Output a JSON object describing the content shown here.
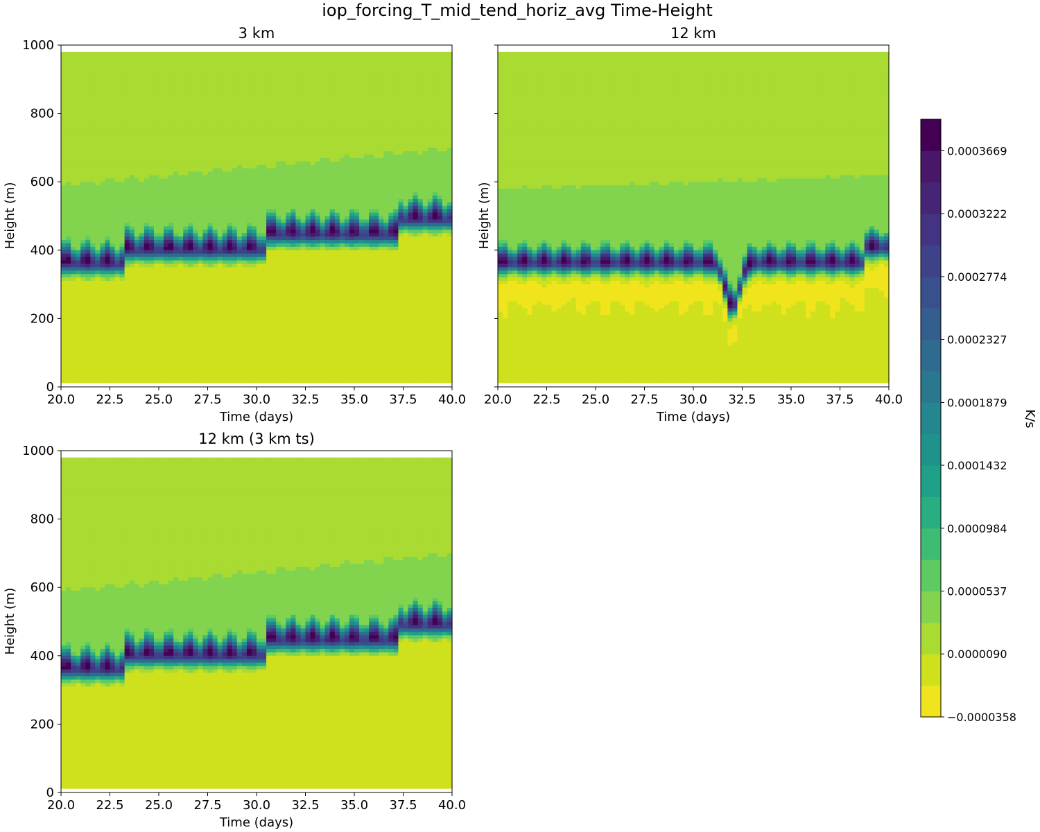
{
  "chart_data": {
    "type": "heatmap",
    "title": "iop_forcing_T_mid_tend_horiz_avg Time-Height",
    "colorbar": {
      "label": "K/s",
      "levels": [
        -3.58e-05,
        -1.34e-05,
        9e-06,
        3.13e-05,
        5.37e-05,
        7.61e-05,
        9.84e-05,
        0.0001208,
        0.0001432,
        0.0001656,
        0.0001879,
        0.0002103,
        0.0002327,
        0.0002551,
        0.0002774,
        0.0002998,
        0.0003222,
        0.0003446,
        0.0003669,
        0.0003893
      ],
      "tick_labels": [
        "−0.0000358",
        "0.0000090",
        "0.0000537",
        "0.0000984",
        "0.0001432",
        "0.0001879",
        "0.0002327",
        "0.0002774",
        "0.0003222",
        "0.0003669"
      ],
      "tick_values": [
        -3.58e-05,
        9e-06,
        5.37e-05,
        9.84e-05,
        0.0001432,
        0.0001879,
        0.0002327,
        0.0002774,
        0.0003222,
        0.0003669
      ],
      "colors": [
        "#f0e51d",
        "#cfe11c",
        "#a9db33",
        "#82d34e",
        "#5fca61",
        "#3ebc73",
        "#28ae80",
        "#1fa088",
        "#1f938b",
        "#24868e",
        "#29788e",
        "#2e6b8e",
        "#335e8d",
        "#38508b",
        "#3e4289",
        "#433382",
        "#472576",
        "#481769",
        "#440154"
      ]
    },
    "panels": [
      {
        "title": "3 km",
        "xlabel": "Time (days)",
        "ylabel": "Height (m)",
        "xlim": [
          20.0,
          40.0
        ],
        "ylim": [
          0,
          1000
        ],
        "xticks": [
          "20.0",
          "22.5",
          "25.0",
          "27.5",
          "30.0",
          "32.5",
          "35.0",
          "37.5",
          "40.0"
        ],
        "yticks": [
          "0",
          "200",
          "400",
          "600",
          "800",
          "1000"
        ],
        "show_ytick_labels": true,
        "data_top": 980,
        "data_bottom": 12,
        "peak_start": 365,
        "peak_end": 500,
        "steps": [
          [
            23.3,
            40
          ],
          [
            30.4,
            45
          ],
          [
            37.2,
            45
          ]
        ],
        "band_width": 42,
        "plateau_start": 590,
        "plateau_end": 700,
        "oscillation": 12,
        "dip": null
      },
      {
        "title": "12 km",
        "xlabel": "Time (days)",
        "ylabel": "Height (m)",
        "xlim": [
          20.0,
          40.0
        ],
        "ylim": [
          0,
          1000
        ],
        "xticks": [
          "20.0",
          "22.5",
          "25.0",
          "27.5",
          "30.0",
          "32.5",
          "35.0",
          "37.5",
          "40.0"
        ],
        "yticks": [
          "0",
          "200",
          "400",
          "600",
          "800",
          "1000"
        ],
        "show_ytick_labels": false,
        "data_top": 980,
        "data_bottom": 12,
        "peak_start": 365,
        "peak_end": 420,
        "steps": [
          [
            38.8,
            45
          ]
        ],
        "band_width": 38,
        "plateau_start": 580,
        "plateau_end": 620,
        "oscillation": 6,
        "dip": {
          "center": 32.0,
          "depth": 130,
          "width": 0.5
        },
        "under_band": true
      },
      {
        "title": "12 km (3 km ts)",
        "xlabel": "Time (days)",
        "ylabel": "Height (m)",
        "xlim": [
          20.0,
          40.0
        ],
        "ylim": [
          0,
          1000
        ],
        "xticks": [
          "20.0",
          "22.5",
          "25.0",
          "27.5",
          "30.0",
          "32.5",
          "35.0",
          "37.5",
          "40.0"
        ],
        "yticks": [
          "0",
          "200",
          "400",
          "600",
          "800",
          "1000"
        ],
        "show_ytick_labels": true,
        "data_top": 980,
        "data_bottom": 12,
        "peak_start": 365,
        "peak_end": 500,
        "steps": [
          [
            23.3,
            40
          ],
          [
            30.4,
            45
          ],
          [
            37.2,
            45
          ]
        ],
        "band_width": 42,
        "plateau_start": 590,
        "plateau_end": 700,
        "oscillation": 12,
        "dip": null
      }
    ]
  }
}
